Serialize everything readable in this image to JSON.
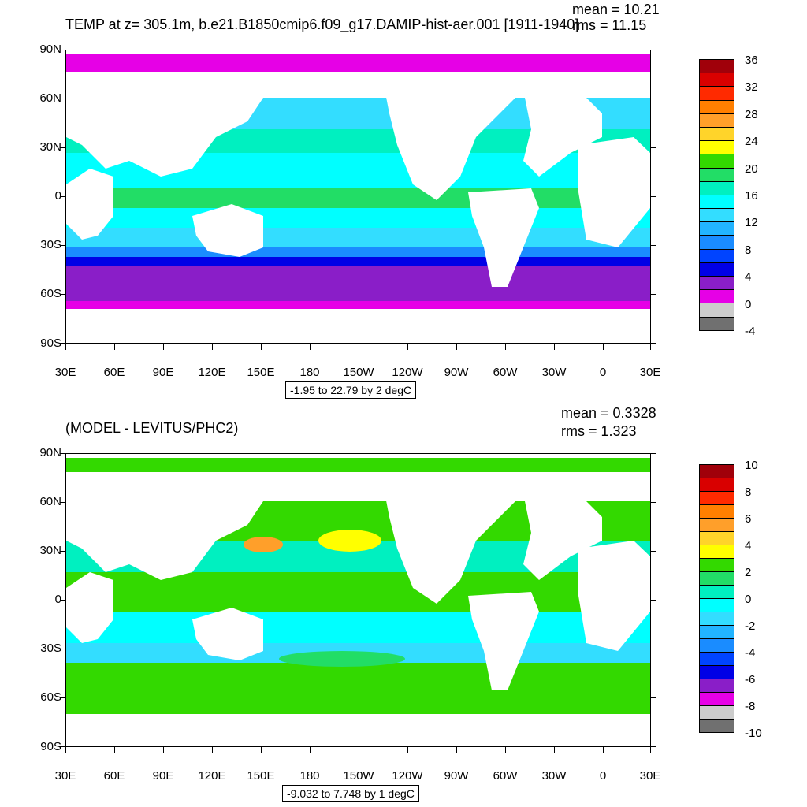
{
  "top": {
    "title": "TEMP at z= 305.1m, b.e21.B1850cmip6.f09_g17.DAMIP-hist-aer.001 [1911-1940]",
    "mean": "mean = 10.21",
    "rms": "rms = 11.15",
    "range_box": "-1.95 to 22.79 by 2 degC",
    "colorbar_labels": [
      "36",
      "32",
      "28",
      "24",
      "20",
      "16",
      "12",
      "8",
      "4",
      "0",
      "-4"
    ],
    "colorbar_colors": [
      "#a0000a",
      "#d90000",
      "#ff2a00",
      "#ff7f00",
      "#ff9f2a",
      "#ffd42a",
      "#ffff00",
      "#33d900",
      "#22dd66",
      "#00f0c0",
      "#00ffff",
      "#33ddff",
      "#22b4ff",
      "#1a8cff",
      "#0044ff",
      "#0000e6",
      "#8a1ec8",
      "#e600e6",
      "#cccccc",
      "#707070"
    ]
  },
  "bottom": {
    "title": "(MODEL - LEVITUS/PHC2)",
    "mean": "mean = 0.3328",
    "rms": "rms = 1.323",
    "range_box": "-9.032 to 7.748 by 1 degC",
    "colorbar_labels": [
      "10",
      "8",
      "6",
      "4",
      "2",
      "0",
      "-2",
      "-4",
      "-6",
      "-8",
      "-10"
    ],
    "colorbar_colors": [
      "#a0000a",
      "#d90000",
      "#ff2a00",
      "#ff7f00",
      "#ff9f2a",
      "#ffd42a",
      "#ffff00",
      "#33d900",
      "#22dd66",
      "#00f0c0",
      "#00ffff",
      "#33ddff",
      "#22b4ff",
      "#1a8cff",
      "#0044ff",
      "#0000e6",
      "#8a1ec8",
      "#e600e6",
      "#cccccc",
      "#707070"
    ]
  },
  "axes": {
    "lat_labels": [
      "90N",
      "60N",
      "30N",
      "0",
      "30S",
      "60S",
      "90S"
    ],
    "lon_labels": [
      "30E",
      "60E",
      "90E",
      "120E",
      "150E",
      "180",
      "150W",
      "120W",
      "90W",
      "60W",
      "30W",
      "0",
      "30E"
    ]
  }
}
